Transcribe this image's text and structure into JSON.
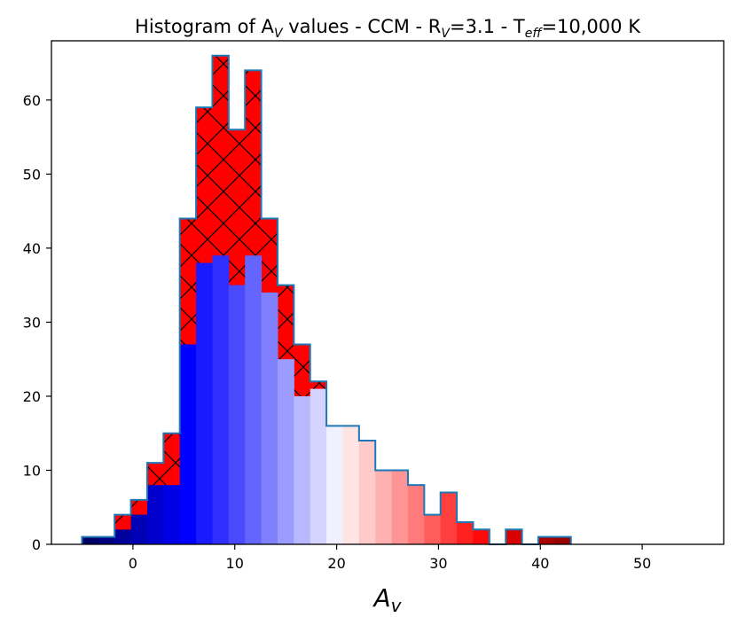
{
  "chart_data": {
    "type": "bar",
    "title": {
      "prefix": "Histogram of A",
      "prefix_sub": "V",
      "middle": " values - CCM - R",
      "middle_sub": "V",
      "rv_value": "=3.1 - T",
      "teff_sub": "eff",
      "suffix": "=10,000 K"
    },
    "xlabel": {
      "main": "A",
      "sub": "v"
    },
    "ylabel": "",
    "xlim": [
      -8,
      58
    ],
    "ylim": [
      0,
      68
    ],
    "xticks": [
      0,
      10,
      20,
      30,
      40,
      50
    ],
    "yticks": [
      0,
      10,
      20,
      30,
      40,
      50,
      60
    ],
    "bin_edges": [
      -5.0,
      -3.4,
      -1.8,
      -0.2,
      1.4,
      3.0,
      4.6,
      6.2,
      7.8,
      9.4,
      11.0,
      12.6,
      14.2,
      15.8,
      17.4,
      19.0,
      20.6,
      22.2,
      23.8,
      25.4,
      27.0,
      28.6,
      30.2,
      31.8,
      33.4,
      35.0,
      36.6,
      38.2,
      39.8,
      41.4,
      43.0
    ],
    "series": [
      {
        "role": "total-outline-hatched",
        "values": [
          1,
          1,
          4,
          6,
          11,
          15,
          44,
          59,
          66,
          56,
          64,
          44,
          35,
          27,
          22,
          16,
          16,
          14,
          10,
          10,
          8,
          4,
          7,
          3,
          2,
          0,
          2,
          0,
          1,
          1
        ],
        "fill": "#ff0000",
        "edge": "#1f77b4",
        "hatch": "x"
      },
      {
        "role": "colored-bars",
        "values": [
          1,
          1,
          2,
          4,
          8,
          8,
          27,
          38,
          39,
          35,
          39,
          34,
          25,
          20,
          21,
          16,
          16,
          14,
          10,
          10,
          8,
          4,
          7,
          3,
          2,
          0,
          2,
          0,
          1,
          1
        ],
        "colors": [
          "#000066",
          "#000080",
          "#00009a",
          "#0000b4",
          "#0000cc",
          "#0000e6",
          "#0000ff",
          "#1a1aff",
          "#2f2fff",
          "#4a4aff",
          "#6464ff",
          "#8080ff",
          "#9c9cff",
          "#b8b8ff",
          "#d4d4ff",
          "#f0f0ff",
          "#ffe4e4",
          "#ffcaca",
          "#ffb0b0",
          "#ff9494",
          "#ff7a7a",
          "#ff5c5c",
          "#ff3e3e",
          "#ff2020",
          "#ff0a0a",
          "#ee0000",
          "#d80000",
          "#c20000",
          "#aa0000",
          "#990000"
        ]
      }
    ]
  }
}
